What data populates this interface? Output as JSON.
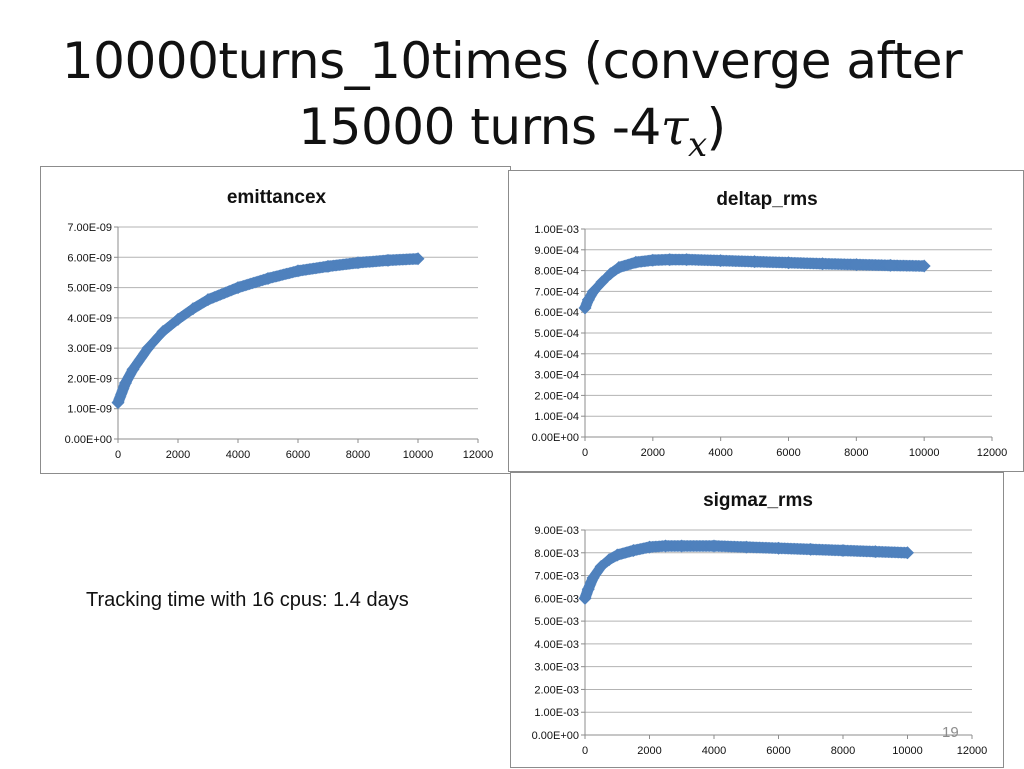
{
  "slide": {
    "title_line1": "10000turns_10times  (converge after",
    "title_line2_prefix": "15000 turns -4",
    "title_tau": "τ",
    "title_sub": "x",
    "title_suffix": ")",
    "note": "Tracking time with 16 cpus: 1.4 days",
    "page_number": "19"
  },
  "colors": {
    "series": "#4f81bd",
    "grid": "#b3b3b3",
    "axis": "#8c8c8c"
  },
  "chart_data": [
    {
      "id": "emittancex",
      "type": "scatter",
      "title": "emittancex",
      "xlabel": "",
      "ylabel": "",
      "xlim": [
        0,
        12000
      ],
      "ylim": [
        0,
        7e-09
      ],
      "xticks": [
        "0",
        "2000",
        "4000",
        "6000",
        "8000",
        "10000",
        "12000"
      ],
      "yticks": [
        "0.00E+00",
        "1.00E-09",
        "2.00E-09",
        "3.00E-09",
        "4.00E-09",
        "5.00E-09",
        "6.00E-09",
        "7.00E-09"
      ],
      "grid": true,
      "series": [
        {
          "x": [
            0,
            250,
            500,
            1000,
            1500,
            2000,
            2500,
            3000,
            4000,
            5000,
            6000,
            7000,
            8000,
            9000,
            10000
          ],
          "y": [
            1.2e-09,
            1.85e-09,
            2.3e-09,
            3e-09,
            3.55e-09,
            3.95e-09,
            4.3e-09,
            4.6e-09,
            5e-09,
            5.3e-09,
            5.55e-09,
            5.7e-09,
            5.82e-09,
            5.9e-09,
            5.95e-09
          ]
        }
      ]
    },
    {
      "id": "deltap_rms",
      "type": "scatter",
      "title": "deltap_rms",
      "xlabel": "",
      "ylabel": "",
      "xlim": [
        0,
        12000
      ],
      "ylim": [
        0,
        0.001
      ],
      "xticks": [
        "0",
        "2000",
        "4000",
        "6000",
        "8000",
        "10000",
        "12000"
      ],
      "yticks": [
        "0.00E+00",
        "1.00E-04",
        "2.00E-04",
        "3.00E-04",
        "4.00E-04",
        "5.00E-04",
        "6.00E-04",
        "7.00E-04",
        "8.00E-04",
        "9.00E-04",
        "1.00E-03"
      ],
      "grid": true,
      "series": [
        {
          "x": [
            0,
            100,
            250,
            500,
            750,
            1000,
            1500,
            2000,
            2500,
            3000,
            4000,
            5000,
            6000,
            7000,
            8000,
            9000,
            10000
          ],
          "y": [
            0.00062,
            0.00066,
            0.0007,
            0.000745,
            0.000785,
            0.000815,
            0.00084,
            0.00085,
            0.000853,
            0.000853,
            0.000848,
            0.000843,
            0.000838,
            0.000833,
            0.000829,
            0.000825,
            0.000822
          ]
        }
      ]
    },
    {
      "id": "sigmaz_rms",
      "type": "scatter",
      "title": "sigmaz_rms",
      "xlabel": "",
      "ylabel": "",
      "xlim": [
        0,
        12000
      ],
      "ylim": [
        0,
        0.009
      ],
      "xticks": [
        "0",
        "2000",
        "4000",
        "6000",
        "8000",
        "10000",
        "12000"
      ],
      "yticks": [
        "0.00E+00",
        "1.00E-03",
        "2.00E-03",
        "3.00E-03",
        "4.00E-03",
        "5.00E-03",
        "6.00E-03",
        "7.00E-03",
        "8.00E-03",
        "9.00E-03"
      ],
      "grid": true,
      "series": [
        {
          "x": [
            0,
            100,
            250,
            500,
            750,
            1000,
            1500,
            2000,
            2500,
            3000,
            4000,
            5000,
            6000,
            7000,
            8000,
            9000,
            10000
          ],
          "y": [
            0.006,
            0.0064,
            0.0069,
            0.0074,
            0.0077,
            0.0079,
            0.0081,
            0.00825,
            0.0083,
            0.0083,
            0.0083,
            0.00825,
            0.0082,
            0.00815,
            0.0081,
            0.00805,
            0.008
          ]
        }
      ]
    }
  ]
}
